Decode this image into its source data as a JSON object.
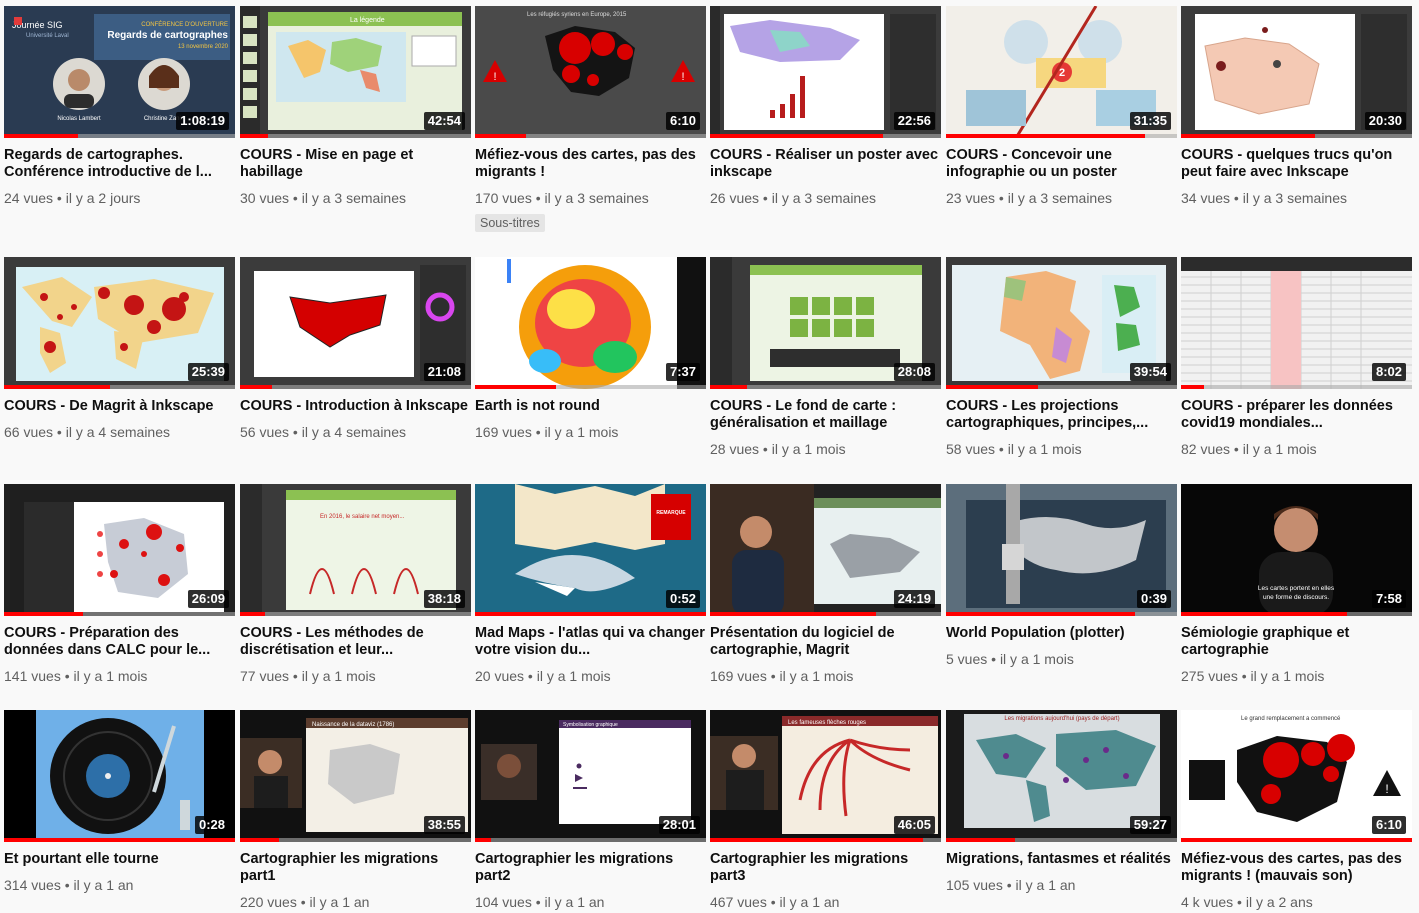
{
  "videos": [
    {
      "title": "Regards de cartographes. Conférence introductive de l...",
      "views": "24 vues",
      "age": "il y a 2 jours",
      "duration": "1:08:19",
      "progress": 0.32,
      "badge": "",
      "thumb_text": [
        "Journée SIG",
        "Université Laval",
        "CONFÉRENCE D'OUVERTURE",
        "Regards de cartographes",
        "13 novembre 2020",
        "Nicolas Lambert",
        "Christine Zanin"
      ]
    },
    {
      "title": "COURS - Mise en page et habillage",
      "views": "30 vues",
      "age": "il y a 3 semaines",
      "duration": "42:54",
      "progress": 0.12,
      "badge": "",
      "thumb_text": [
        "La légende"
      ]
    },
    {
      "title": "Méfiez-vous des cartes, pas des migrants !",
      "views": "170 vues",
      "age": "il y a 3 semaines",
      "duration": "6:10",
      "progress": 0.22,
      "badge": "Sous-titres",
      "thumb_text": [
        "Les réfugiés syriens en Europe, 2015"
      ]
    },
    {
      "title": "COURS - Réaliser un poster avec inkscape",
      "views": "26 vues",
      "age": "il y a 3 semaines",
      "duration": "22:56",
      "progress": 0.75,
      "badge": "",
      "thumb_text": []
    },
    {
      "title": "COURS - Concevoir une infographie ou un poster",
      "views": "23 vues",
      "age": "il y a 3 semaines",
      "duration": "31:35",
      "progress": 0.86,
      "badge": "",
      "thumb_text": [
        "2"
      ]
    },
    {
      "title": "COURS - quelques trucs qu'on peut faire avec Inkscape",
      "views": "34 vues",
      "age": "il y a 3 semaines",
      "duration": "20:30",
      "progress": 0.58,
      "badge": "",
      "thumb_text": []
    },
    {
      "title": "COURS - De Magrit à Inkscape",
      "views": "66 vues",
      "age": "il y a 4 semaines",
      "duration": "25:39",
      "progress": 0.46,
      "badge": "",
      "thumb_text": []
    },
    {
      "title": "COURS - Introduction à Inkscape",
      "views": "56 vues",
      "age": "il y a 4 semaines",
      "duration": "21:08",
      "progress": 0.14,
      "badge": "",
      "thumb_text": []
    },
    {
      "title": "Earth is not round",
      "views": "169 vues",
      "age": "il y a 1 mois",
      "duration": "7:37",
      "progress": 0.35,
      "badge": "",
      "thumb_text": []
    },
    {
      "title": "COURS - Le fond de carte : généralisation et maillage",
      "views": "28 vues",
      "age": "il y a 1 mois",
      "duration": "28:08",
      "progress": 0.16,
      "badge": "",
      "thumb_text": []
    },
    {
      "title": "COURS - Les projections cartographiques, principes,...",
      "views": "58 vues",
      "age": "il y a 1 mois",
      "duration": "39:54",
      "progress": 0.4,
      "badge": "",
      "thumb_text": []
    },
    {
      "title": "COURS - préparer les données covid19 mondiales...",
      "views": "82 vues",
      "age": "il y a 1 mois",
      "duration": "8:02",
      "progress": 0.1,
      "badge": "",
      "thumb_text": []
    },
    {
      "title": "COURS - Préparation des données dans CALC pour le...",
      "views": "141 vues",
      "age": "il y a 1 mois",
      "duration": "26:09",
      "progress": 0.34,
      "badge": "",
      "thumb_text": []
    },
    {
      "title": "COURS - Les méthodes de discrétisation et leur...",
      "views": "77 vues",
      "age": "il y a 1 mois",
      "duration": "38:18",
      "progress": 0.11,
      "badge": "",
      "thumb_text": []
    },
    {
      "title": "Mad Maps - l'atlas qui va changer votre vision du...",
      "views": "20 vues",
      "age": "il y a 1 mois",
      "duration": "0:52",
      "progress": 1.0,
      "badge": "",
      "thumb_text": [
        "REMARQUE FAITE PAR DES REQUINS"
      ]
    },
    {
      "title": "Présentation du logiciel de cartographie, Magrit",
      "views": "169 vues",
      "age": "il y a 1 mois",
      "duration": "24:19",
      "progress": 0.72,
      "badge": "",
      "thumb_text": []
    },
    {
      "title": "World Population (plotter)",
      "views": "5 vues",
      "age": "il y a 1 mois",
      "duration": "0:39",
      "progress": 0.82,
      "badge": "",
      "thumb_text": []
    },
    {
      "title": "Sémiologie graphique et cartographie",
      "views": "275 vues",
      "age": "il y a 1 mois",
      "duration": "7:58",
      "progress": 0.72,
      "badge": "",
      "thumb_text": [
        "Les cartes portent en elles",
        "une forme de discours."
      ]
    },
    {
      "title": "Et pourtant elle tourne",
      "views": "314 vues",
      "age": "il y a 1 an",
      "duration": "0:28",
      "progress": 1.0,
      "badge": "",
      "thumb_text": []
    },
    {
      "title": "Cartographier les migrations part1",
      "views": "220 vues",
      "age": "il y a 1 an",
      "duration": "38:55",
      "progress": 0.17,
      "badge": "",
      "thumb_text": [
        "Naissance de la dataviz (1786)"
      ]
    },
    {
      "title": "Cartographier les migrations part2",
      "views": "104 vues",
      "age": "il y a 1 an",
      "duration": "28:01",
      "progress": 0.07,
      "badge": "",
      "thumb_text": [
        "Symbolisation graphique"
      ]
    },
    {
      "title": "Cartographier les migrations part3",
      "views": "467 vues",
      "age": "il y a 1 an",
      "duration": "46:05",
      "progress": 0.92,
      "badge": "",
      "thumb_text": [
        "Les fameuses flèches rouges"
      ]
    },
    {
      "title": "Migrations, fantasmes et réalités",
      "views": "105 vues",
      "age": "il y a 1 an",
      "duration": "59:27",
      "progress": 0.3,
      "badge": "",
      "thumb_text": [
        "Les migrations aujourd'hui (pays de départ)"
      ]
    },
    {
      "title": "Méfiez-vous des cartes, pas des migrants ! (mauvais son)",
      "views": "4 k vues",
      "age": "il y a 2 ans",
      "duration": "6:10",
      "progress": 1.0,
      "badge": "",
      "thumb_text": [
        "Le grand remplacement a commencé"
      ]
    }
  ]
}
